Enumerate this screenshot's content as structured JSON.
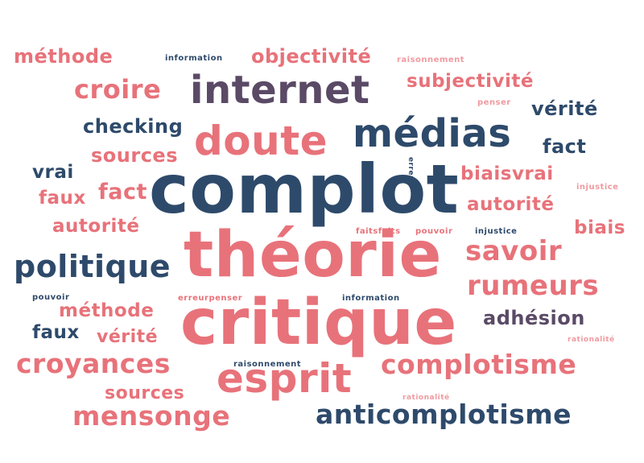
{
  "colors": {
    "pink": "#e8727a",
    "lightpink": "#f09aa0",
    "navy": "#2e4a6b",
    "purple": "#5a4a66"
  },
  "words": {
    "complot": "complot",
    "theorie": "théorie",
    "critique": "critique",
    "medias": "médias",
    "internet": "internet",
    "doute": "doute",
    "politique": "politique",
    "esprit": "esprit",
    "anticomplotisme": "anticomplotisme",
    "complotisme": "complotisme",
    "croyances": "croyances",
    "mensonge": "mensonge",
    "rumeurs": "rumeurs",
    "savoir": "savoir",
    "croire": "croire",
    "methode_top": "méthode",
    "objectivite": "objectivité",
    "subjectivite": "subjectivité",
    "verite_right": "vérité",
    "fact_right": "fact",
    "checking": "checking",
    "sources_top": "sources",
    "vrai_left": "vrai",
    "faux_left": "faux",
    "fact_left": "fact",
    "autorite_left": "autorité",
    "biaisvrai": "biaisvrai",
    "autorite_right": "autorité",
    "biais_right": "biais",
    "adhesion": "adhésion",
    "methode_bottom": "méthode",
    "faux_bottom": "faux",
    "verite_bottom": "vérité",
    "sources_bottom": "sources",
    "information_top": "information",
    "raisonnement_top": "raisonnement",
    "penser_right": "penser",
    "erreur_small": "erreur",
    "injustice_right": "injustice",
    "faitsfaits": "faitsfaits",
    "pouvoir_mid": "pouvoir",
    "injustice_mid": "injustice",
    "pouvoir_left": "pouvoir",
    "erreurpenser": "erreurpenser",
    "information_mid": "information",
    "raisonnement_bottom": "raisonnement",
    "rationalite_right": "rationalité",
    "rationalite_bottom": "rationalité"
  }
}
